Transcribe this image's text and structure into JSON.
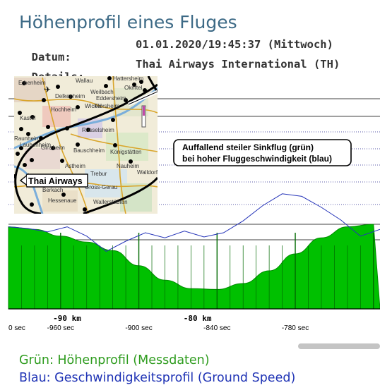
{
  "page": {
    "title": "Höhenprofil eines Fluges",
    "datum_label": "Datum:",
    "datum_value": "01.01.2020/19:45:37 (Mittwoch)",
    "details_label": "Details:",
    "details_value": "Thai Airways International (TH)"
  },
  "map": {
    "callout": "Thai Airways",
    "places": [
      "Erbenheim",
      "Wallau",
      "Hattersheim",
      "Okriftel",
      "Weilbach",
      "Delkenheim",
      "Eddersheim",
      "Flörsheim",
      "Hochheim",
      "Wicker",
      "Kastel",
      "Rüsselsheim",
      "Raunheim",
      "Laubenheim",
      "Ginsheim",
      "Bauschheim",
      "Königstätten",
      "Astheim",
      "Nauheim",
      "Trebur",
      "Walldorf",
      "Gross-Gerau",
      "Berkach",
      "Hessenaue",
      "Wallerstädten"
    ]
  },
  "annotation": {
    "line1": "Auffallend steiler Sinkflug (grün)",
    "line2": "bei hoher Fluggeschwindigkeit (blau)"
  },
  "chart_data": {
    "type": "area",
    "series": [
      {
        "color": "#00c000",
        "x_sec": [
          -1000,
          -980,
          -960,
          -940,
          -920,
          -900,
          -880,
          -860,
          -840,
          -820,
          -800,
          -780,
          -760,
          -740,
          -720
        ],
        "values_rel": [
          0.97,
          0.94,
          0.86,
          0.79,
          0.69,
          0.51,
          0.34,
          0.24,
          0.23,
          0.3,
          0.45,
          0.65,
          0.84,
          0.97,
          1.0
        ]
      },
      {
        "color": "#2433b8",
        "x_sec": [
          -1000,
          -985,
          -970,
          -955,
          -940,
          -925,
          -910,
          -895,
          -880,
          -865,
          -850,
          -835,
          -820,
          -805,
          -790,
          -775,
          -760,
          -745,
          -730,
          -715
        ],
        "values_rel": [
          0.97,
          0.95,
          0.91,
          0.97,
          0.86,
          0.68,
          0.8,
          0.9,
          0.84,
          0.92,
          0.85,
          0.9,
          1.04,
          1.22,
          1.36,
          1.33,
          1.2,
          1.05,
          0.86,
          0.94
        ]
      }
    ],
    "x_labels_km": [
      "-90 km",
      "-80 km"
    ],
    "x_labels_sec": [
      "0 sec",
      "-960 sec",
      "-900 sec",
      "-840 sec",
      "-780 sec"
    ]
  },
  "legend": {
    "green": "Grün: Höhenprofil (Messdaten)",
    "blue": "Blau: Geschwindigkeitsprofil (Ground Speed)",
    "green_color": "#2e9c1e",
    "blue_color": "#1f33b5"
  }
}
